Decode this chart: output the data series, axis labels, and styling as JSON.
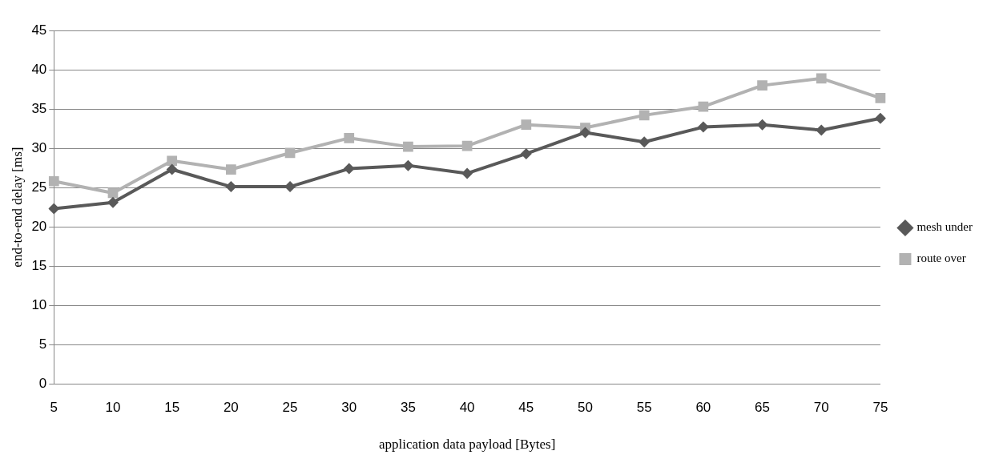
{
  "chart_data": {
    "type": "line",
    "xlabel": "application data payload [Bytes]",
    "ylabel": "end-to-end delay [ms]",
    "categories": [
      "5",
      "10",
      "15",
      "20",
      "25",
      "30",
      "35",
      "40",
      "45",
      "50",
      "55",
      "60",
      "65",
      "70",
      "75"
    ],
    "series": [
      {
        "name": "mesh under",
        "color": "#595959",
        "marker": "diamond",
        "values": [
          22.3,
          23.1,
          27.3,
          25.1,
          25.1,
          27.4,
          27.8,
          26.8,
          29.3,
          32.0,
          30.8,
          32.7,
          33.0,
          32.3,
          33.8
        ]
      },
      {
        "name": "route over",
        "color": "#b2b2b2",
        "marker": "square",
        "values": [
          25.8,
          24.3,
          28.4,
          27.3,
          29.4,
          31.3,
          30.2,
          30.3,
          33.0,
          32.6,
          34.2,
          35.3,
          38.0,
          38.9,
          36.4
        ]
      }
    ],
    "ylim": [
      0,
      45
    ],
    "yticks": [
      0,
      5,
      10,
      15,
      20,
      25,
      30,
      35,
      40,
      45
    ],
    "grid": "y",
    "legend": "right",
    "line_style": "solid"
  }
}
